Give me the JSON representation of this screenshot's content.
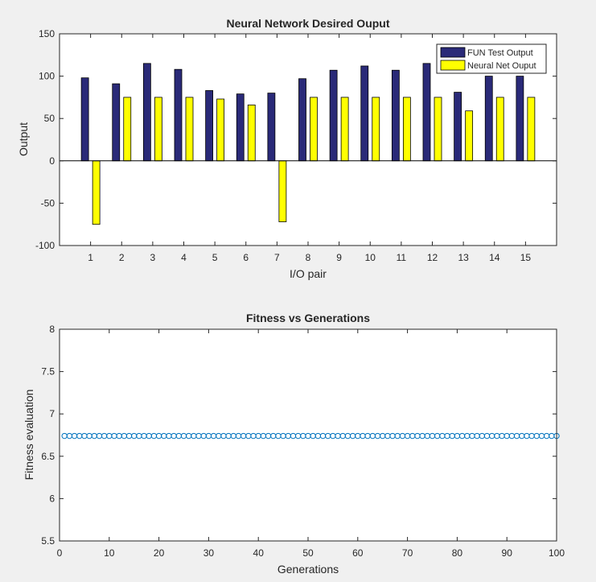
{
  "chart_data": [
    {
      "type": "bar",
      "title": "Neural Network Desired Ouput",
      "xlabel": "I/O pair",
      "ylabel": "Output",
      "categories": [
        "1",
        "2",
        "3",
        "4",
        "5",
        "6",
        "7",
        "8",
        "9",
        "10",
        "11",
        "12",
        "13",
        "14",
        "15"
      ],
      "series": [
        {
          "name": "FUN Test Output",
          "color": "#2a2a78",
          "values": [
            98,
            91,
            115,
            108,
            83,
            79,
            80,
            97,
            107,
            112,
            107,
            115,
            81,
            100,
            100
          ]
        },
        {
          "name": "Neural Net Ouput",
          "color": "#ffff00",
          "values": [
            -75,
            75,
            75,
            75,
            73,
            66,
            -72,
            75,
            75,
            75,
            75,
            75,
            59,
            75,
            75
          ]
        }
      ],
      "ylim": [
        -100,
        150
      ],
      "yticks": [
        "-100",
        "-50",
        "0",
        "50",
        "100",
        "150"
      ],
      "legend_position": "top-right",
      "grid": false
    },
    {
      "type": "scatter",
      "title": "Fitness vs Generations",
      "xlabel": "Generations",
      "ylabel": "Fitness evaluation",
      "series": [
        {
          "color": "#0072bd",
          "marker": "circle",
          "x_start": 1,
          "x_end": 100,
          "value": 6.74
        }
      ],
      "xlim": [
        0,
        100
      ],
      "ylim": [
        5.5,
        8
      ],
      "xticks": [
        "0",
        "10",
        "20",
        "30",
        "40",
        "50",
        "60",
        "70",
        "80",
        "90",
        "100"
      ],
      "yticks": [
        "5.5",
        "6",
        "6.5",
        "7",
        "7.5",
        "8"
      ],
      "grid": false
    }
  ]
}
